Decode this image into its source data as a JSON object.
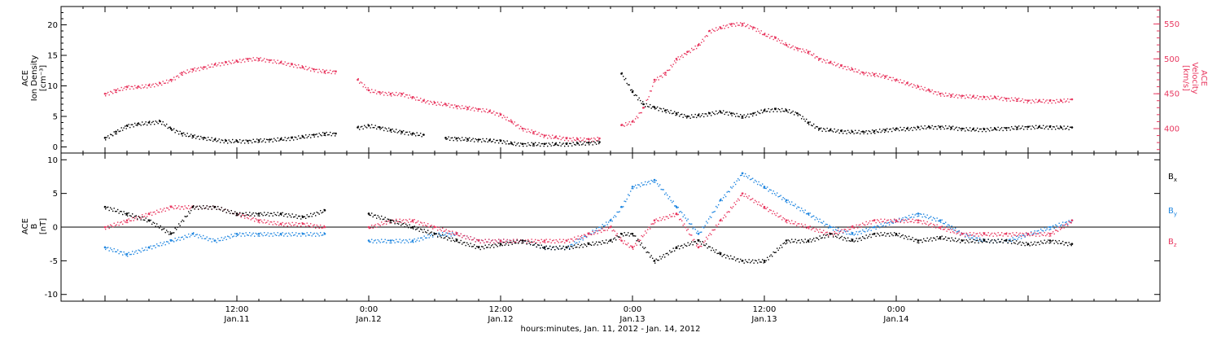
{
  "colors": {
    "axis": "#000000",
    "density": "#000000",
    "velocity": "#e8375f",
    "bx": "#000000",
    "by": "#1f86e0",
    "bz": "#e8375f"
  },
  "chart_data": [
    {
      "type": "scatter",
      "panel": "top",
      "ylabel_left": [
        "ACE",
        "Ion Density",
        "[cm⁻³]"
      ],
      "ylabel_right": [
        "ACE",
        "Velocity",
        "[km/s]"
      ],
      "ylim_left": [
        -1,
        23
      ],
      "ylim_right": [
        365,
        575
      ],
      "yticks_left": [
        "0",
        "5",
        "10",
        "15",
        "20"
      ],
      "yticks_left_values": [
        0,
        5,
        10,
        15,
        20
      ],
      "yticks_right": [
        "400",
        "450",
        "500",
        "550"
      ],
      "yticks_right_values": [
        400,
        450,
        500,
        550
      ],
      "series": [
        {
          "key": "density",
          "axis": "left",
          "x": [
            0,
            1,
            2,
            3,
            4,
            5,
            6,
            7,
            8,
            9,
            10,
            11,
            12,
            13,
            14,
            15,
            16,
            17,
            18,
            19,
            20,
            21,
            22,
            23,
            24,
            25,
            26,
            27,
            28,
            29,
            30,
            31,
            32,
            33,
            34,
            35,
            36,
            37,
            38,
            39,
            40,
            41,
            42,
            43,
            44,
            45,
            46,
            47,
            48,
            49,
            50,
            51,
            52,
            53,
            54,
            55,
            56,
            57,
            58,
            59,
            60,
            61,
            62,
            63,
            64,
            65,
            66,
            67,
            68,
            69,
            70,
            71,
            72,
            73,
            74,
            75,
            76,
            77,
            78,
            79,
            80,
            81,
            82,
            83,
            84,
            85,
            86,
            87,
            88
          ],
          "y": [
            1.5,
            2.5,
            3.5,
            3.8,
            4.0,
            4.2,
            3.0,
            2.2,
            1.8,
            1.5,
            1.2,
            1.0,
            1.0,
            1.0,
            1.1,
            1.2,
            1.3,
            1.5,
            1.7,
            2.0,
            2.2,
            2.2,
            null,
            3.2,
            3.5,
            3.2,
            2.8,
            2.5,
            2.2,
            2.0,
            null,
            1.5,
            1.4,
            1.3,
            1.2,
            1.1,
            1.0,
            0.6,
            0.5,
            0.5,
            0.5,
            0.5,
            0.5,
            0.6,
            0.7,
            0.8,
            null,
            12.0,
            9.0,
            7.0,
            6.5,
            6.0,
            5.5,
            5.0,
            5.2,
            5.5,
            5.8,
            5.5,
            5.0,
            5.5,
            6.0,
            6.2,
            6.0,
            5.5,
            4.0,
            3.0,
            2.8,
            2.6,
            2.5,
            2.5,
            2.6,
            2.8,
            3.0,
            3.0,
            3.2,
            3.3,
            3.3,
            3.2,
            3.0,
            2.9,
            2.9,
            3.0,
            3.1,
            3.2,
            3.3,
            3.3,
            3.3,
            3.2,
            3.2
          ]
        },
        {
          "key": "velocity",
          "axis": "right",
          "x": [
            0,
            1,
            2,
            3,
            4,
            5,
            6,
            7,
            8,
            9,
            10,
            11,
            12,
            13,
            14,
            15,
            16,
            17,
            18,
            19,
            20,
            21,
            22,
            23,
            24,
            25,
            26,
            27,
            28,
            29,
            30,
            31,
            32,
            33,
            34,
            35,
            36,
            37,
            38,
            39,
            40,
            41,
            42,
            43,
            44,
            45,
            46,
            47,
            48,
            49,
            50,
            51,
            52,
            53,
            54,
            55,
            56,
            57,
            58,
            59,
            60,
            61,
            62,
            63,
            64,
            65,
            66,
            67,
            68,
            69,
            70,
            71,
            72,
            73,
            74,
            75,
            76,
            77,
            78,
            79,
            80,
            81,
            82,
            83,
            84,
            85,
            86,
            87,
            88
          ],
          "y": [
            450,
            455,
            460,
            460,
            462,
            465,
            470,
            480,
            485,
            488,
            492,
            495,
            497,
            500,
            500,
            498,
            495,
            492,
            488,
            485,
            482,
            482,
            null,
            470,
            455,
            452,
            450,
            450,
            445,
            440,
            437,
            435,
            432,
            430,
            428,
            425,
            420,
            410,
            400,
            395,
            390,
            388,
            386,
            385,
            385,
            386,
            null,
            405,
            410,
            430,
            470,
            480,
            500,
            510,
            520,
            540,
            545,
            550,
            550,
            545,
            535,
            530,
            520,
            515,
            510,
            500,
            495,
            490,
            485,
            480,
            478,
            475,
            470,
            465,
            460,
            455,
            450,
            448,
            447,
            446,
            445,
            445,
            443,
            442,
            440,
            440,
            440,
            440,
            442
          ]
        }
      ]
    },
    {
      "type": "scatter",
      "panel": "bottom",
      "ylabel_left": [
        "ACE",
        "B",
        "[nT]"
      ],
      "ylim": [
        -11,
        11
      ],
      "yticks": [
        "10",
        "5",
        "0",
        "-5",
        "-10"
      ],
      "yticks_values": [
        10,
        5,
        0,
        -5,
        -10
      ],
      "legend": [
        "Bx",
        "By",
        "Bz"
      ],
      "legend_placement": "right",
      "series": [
        {
          "key": "bx",
          "name": "Bx",
          "x": [
            0,
            2,
            4,
            6,
            8,
            10,
            12,
            14,
            16,
            18,
            20,
            22,
            24,
            26,
            28,
            30,
            32,
            34,
            36,
            38,
            40,
            42,
            44,
            46,
            47,
            48,
            50,
            52,
            54,
            56,
            58,
            60,
            62,
            64,
            66,
            68,
            70,
            72,
            74,
            76,
            78,
            80,
            82,
            84,
            86,
            88
          ],
          "y": [
            3,
            2,
            1,
            -1,
            3,
            3,
            2,
            2,
            2,
            1.5,
            2.5,
            null,
            2,
            1,
            0,
            -1,
            -2,
            -3,
            -2.5,
            -2,
            -3,
            -3,
            -2.5,
            -2,
            -1,
            -1,
            -5,
            -3,
            -2,
            -4,
            -5,
            -5,
            -2,
            -2,
            -1,
            -2,
            -1,
            -1,
            -2,
            -1.5,
            -2,
            -2,
            -2,
            -2.5,
            -2,
            -2.5
          ]
        },
        {
          "key": "by",
          "name": "By",
          "x": [
            0,
            2,
            4,
            6,
            8,
            10,
            12,
            14,
            16,
            18,
            20,
            22,
            24,
            26,
            28,
            30,
            32,
            34,
            36,
            38,
            40,
            42,
            44,
            46,
            47,
            48,
            50,
            52,
            54,
            56,
            58,
            60,
            62,
            64,
            66,
            68,
            70,
            72,
            74,
            76,
            78,
            80,
            82,
            84,
            86,
            88
          ],
          "y": [
            -3,
            -4,
            -3,
            -2,
            -1,
            -2,
            -1,
            -1,
            -1,
            -1,
            -1,
            null,
            -2,
            -2,
            -2,
            -1,
            -1,
            -2,
            -2,
            -2,
            -3,
            -3,
            -1,
            1,
            3,
            6,
            7,
            3,
            -1,
            4,
            8,
            6,
            4,
            2,
            0,
            -1,
            0,
            1,
            2,
            1,
            -1,
            -2,
            -2,
            -1,
            0,
            1
          ]
        },
        {
          "key": "bz",
          "name": "Bz",
          "x": [
            0,
            2,
            4,
            6,
            8,
            10,
            12,
            14,
            16,
            18,
            20,
            22,
            24,
            26,
            28,
            30,
            32,
            34,
            36,
            38,
            40,
            42,
            44,
            46,
            47,
            48,
            50,
            52,
            54,
            56,
            58,
            60,
            62,
            64,
            66,
            68,
            70,
            72,
            74,
            76,
            78,
            80,
            82,
            84,
            86,
            88
          ],
          "y": [
            0,
            1,
            2,
            3,
            3,
            3,
            2,
            1,
            0.5,
            0.5,
            0,
            null,
            0,
            1,
            1,
            0,
            -1,
            -2,
            -2,
            -2,
            -2,
            -2,
            -1,
            0,
            -2,
            -3,
            1,
            2,
            -3,
            1,
            5,
            3,
            1,
            0,
            -1,
            0,
            1,
            1,
            1,
            0,
            -1,
            -1,
            -1,
            -1,
            -1,
            1
          ]
        }
      ]
    },
    {
      "type": "axis",
      "panel": "shared-x",
      "xlim": [
        -4,
        96
      ],
      "xticks": [
        {
          "x": 12,
          "time": "12:00",
          "date": "Jan.11"
        },
        {
          "x": 24,
          "time": "0:00",
          "date": "Jan.12"
        },
        {
          "x": 36,
          "time": "12:00",
          "date": "Jan.12"
        },
        {
          "x": 48,
          "time": "0:00",
          "date": "Jan.13"
        },
        {
          "x": 60,
          "time": "12:00",
          "date": "Jan.13"
        },
        {
          "x": 72,
          "time": "0:00",
          "date": "Jan.14"
        }
      ],
      "xlabel": "hours:minutes, Jan. 11, 2012 - Jan. 14, 2012"
    }
  ]
}
